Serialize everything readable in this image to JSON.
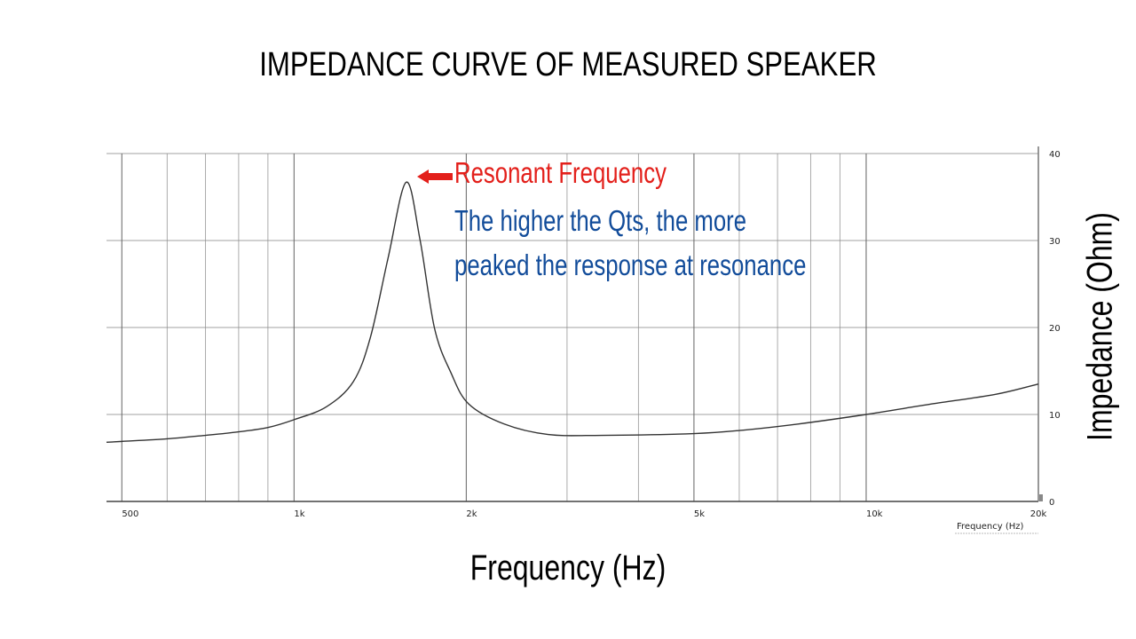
{
  "title": "IMPEDANCE CURVE OF MEASURED SPEAKER",
  "x_axis_label": "Frequency (Hz)",
  "y_axis_label": "Impedance (Ohm)",
  "inner_x_label": "Frequency  (Hz)",
  "annotation": {
    "arrow_label": "Resonant Frequency",
    "note_line1": "The higher the Qts, the more",
    "note_line2": "peaked the response at resonance"
  },
  "colors": {
    "annotation_red": "#e3201b",
    "annotation_blue": "#124c9a",
    "curve": "#333333",
    "grid": "#8a8a8a"
  },
  "chart_data": {
    "type": "line",
    "title": "IMPEDANCE CURVE OF MEASURED SPEAKER",
    "xlabel": "Frequency (Hz)",
    "ylabel": "Impedance (Ohm)",
    "xscale": "log",
    "xlim": [
      470,
      20000
    ],
    "ylim": [
      0,
      40
    ],
    "grid": true,
    "x_tick_labels": [
      "500",
      "1k",
      "2k",
      "5k",
      "10k",
      "20k"
    ],
    "x_ticks": [
      500,
      1000,
      2000,
      5000,
      10000,
      20000
    ],
    "y_ticks": [
      0,
      10,
      20,
      30,
      40
    ],
    "legend": null,
    "annotations": [
      {
        "text": "Resonant Frequency",
        "x": 1570,
        "y": 36.7,
        "type": "arrow"
      },
      {
        "text": "The higher the Qts, the more peaked the response at resonance"
      }
    ],
    "series": [
      {
        "name": "Impedance",
        "x": [
          470,
          500,
          600,
          700,
          800,
          900,
          1000,
          1140,
          1270,
          1360,
          1460,
          1570,
          1660,
          1760,
          1880,
          2020,
          2330,
          2780,
          3450,
          5000,
          6100,
          7600,
          10000,
          13000,
          16800,
          20000
        ],
        "y": [
          6.8,
          6.9,
          7.2,
          7.6,
          8.0,
          8.5,
          9.4,
          10.9,
          13.8,
          18.9,
          28.0,
          36.7,
          30.1,
          19.9,
          14.8,
          11.2,
          8.9,
          7.7,
          7.6,
          7.8,
          8.2,
          8.9,
          10.0,
          11.2,
          12.3,
          13.5
        ]
      }
    ],
    "resonant_frequency_hz": 1570,
    "peak_impedance_ohm": 36.7
  }
}
